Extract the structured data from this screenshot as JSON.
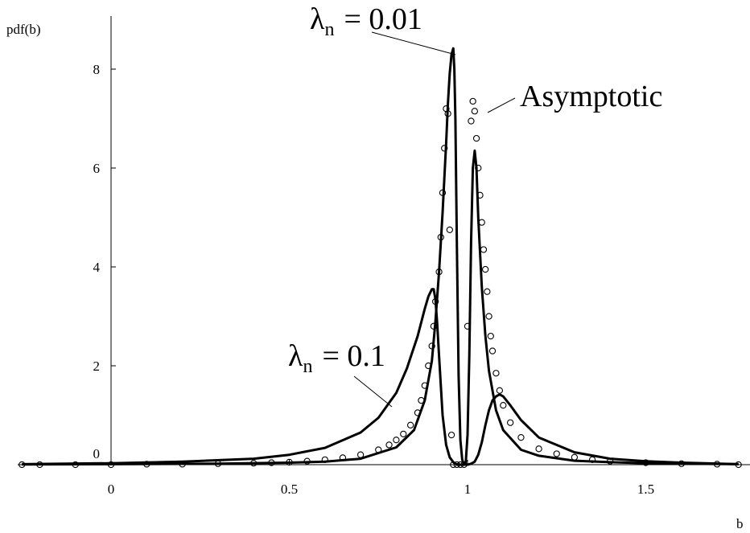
{
  "chart_data": {
    "type": "line",
    "title": "",
    "xlabel": "b",
    "ylabel": "pdf(b)",
    "xlim": [
      -0.25,
      1.76
    ],
    "ylim": [
      0,
      9
    ],
    "xticks": [
      0,
      0.5,
      1,
      1.5
    ],
    "xtick_labels": [
      "0",
      "0.5",
      "1",
      "1.5"
    ],
    "yticks": [
      0,
      2,
      4,
      6,
      8
    ],
    "ytick_labels": [
      "0",
      "2",
      "4",
      "6",
      "8"
    ],
    "grid": false,
    "legend": "none",
    "series": [
      {
        "style": "solid",
        "x": [
          -0.25,
          0.0,
          0.2,
          0.4,
          0.5,
          0.6,
          0.7,
          0.75,
          0.8,
          0.83,
          0.86,
          0.88,
          0.89,
          0.9,
          0.905,
          0.91,
          0.915,
          0.92,
          0.93,
          0.94,
          0.95,
          0.96,
          0.965,
          0.97,
          0.975,
          0.98,
          0.985,
          0.99,
          0.995,
          1.0,
          1.005,
          1.01,
          1.02,
          1.03,
          1.04,
          1.05,
          1.06,
          1.07,
          1.08,
          1.09,
          1.1,
          1.12,
          1.15,
          1.2,
          1.3,
          1.4,
          1.5,
          1.6,
          1.76
        ],
        "y": [
          0.01,
          0.03,
          0.06,
          0.12,
          0.2,
          0.34,
          0.65,
          0.95,
          1.45,
          1.95,
          2.6,
          3.15,
          3.4,
          3.55,
          3.55,
          3.35,
          2.85,
          2.2,
          1.0,
          0.4,
          0.15,
          0.05,
          0.02,
          0.01,
          0.0,
          0.0,
          0.0,
          0.0,
          0.0,
          0.0,
          0.01,
          0.02,
          0.06,
          0.2,
          0.45,
          0.8,
          1.1,
          1.3,
          1.38,
          1.42,
          1.38,
          1.2,
          0.9,
          0.55,
          0.25,
          0.12,
          0.07,
          0.04,
          0.01
        ]
      },
      {
        "style": "solid",
        "x": [
          -0.25,
          0.0,
          0.3,
          0.5,
          0.6,
          0.7,
          0.8,
          0.85,
          0.88,
          0.9,
          0.91,
          0.92,
          0.93,
          0.94,
          0.945,
          0.95,
          0.955,
          0.96,
          0.963,
          0.966,
          0.97,
          0.975,
          0.98,
          0.985,
          0.99,
          0.995,
          1.0,
          1.005,
          1.01,
          1.015,
          1.02,
          1.025,
          1.03,
          1.04,
          1.05,
          1.06,
          1.08,
          1.1,
          1.15,
          1.2,
          1.3,
          1.4,
          1.5,
          1.6,
          1.76
        ],
        "y": [
          0.005,
          0.01,
          0.02,
          0.04,
          0.06,
          0.12,
          0.35,
          0.7,
          1.3,
          2.1,
          2.9,
          3.9,
          5.1,
          6.5,
          7.3,
          7.9,
          8.3,
          8.42,
          8.0,
          7.0,
          4.5,
          1.8,
          0.5,
          0.1,
          0.0,
          0.05,
          0.6,
          2.2,
          4.5,
          6.0,
          6.35,
          6.0,
          5.0,
          3.6,
          2.6,
          1.9,
          1.1,
          0.7,
          0.3,
          0.18,
          0.08,
          0.05,
          0.03,
          0.02,
          0.01
        ]
      },
      {
        "style": "circles",
        "x": [
          -0.25,
          -0.2,
          -0.1,
          0.0,
          0.1,
          0.2,
          0.3,
          0.4,
          0.45,
          0.5,
          0.55,
          0.6,
          0.65,
          0.7,
          0.75,
          0.78,
          0.8,
          0.82,
          0.84,
          0.86,
          0.87,
          0.88,
          0.89,
          0.9,
          0.905,
          0.91,
          0.92,
          0.925,
          0.93,
          0.935,
          0.94,
          0.945,
          0.95,
          0.955,
          0.96,
          0.97,
          0.98,
          0.99,
          1.0,
          1.01,
          1.015,
          1.02,
          1.025,
          1.03,
          1.035,
          1.04,
          1.045,
          1.05,
          1.055,
          1.06,
          1.065,
          1.07,
          1.08,
          1.09,
          1.1,
          1.12,
          1.15,
          1.2,
          1.25,
          1.3,
          1.35,
          1.4,
          1.5,
          1.6,
          1.7,
          1.76
        ],
        "y": [
          0.0,
          0.0,
          0.0,
          0.0,
          0.01,
          0.01,
          0.02,
          0.03,
          0.04,
          0.05,
          0.07,
          0.1,
          0.14,
          0.2,
          0.3,
          0.4,
          0.5,
          0.62,
          0.8,
          1.05,
          1.3,
          1.6,
          2.0,
          2.4,
          2.8,
          3.3,
          3.9,
          4.6,
          5.5,
          6.4,
          7.2,
          7.1,
          4.75,
          0.6,
          0.0,
          0.0,
          0.0,
          0.0,
          2.8,
          6.95,
          7.35,
          7.15,
          6.6,
          6.0,
          5.45,
          4.9,
          4.35,
          3.95,
          3.5,
          3.0,
          2.6,
          2.3,
          1.85,
          1.5,
          1.2,
          0.85,
          0.55,
          0.32,
          0.22,
          0.15,
          0.1,
          0.07,
          0.04,
          0.02,
          0.01,
          0.0
        ]
      }
    ],
    "annotations": [
      {
        "text_main": "λ",
        "text_sub": "n",
        "text_rest": "= 0.01",
        "target": [
          0.96,
          8.42
        ]
      },
      {
        "text_main": "λ",
        "text_sub": "n",
        "text_rest": "= 0.1",
        "target": [
          0.8,
          1.15
        ]
      },
      {
        "text": "Asymptotic",
        "target": [
          1.03,
          7.05
        ]
      }
    ]
  }
}
